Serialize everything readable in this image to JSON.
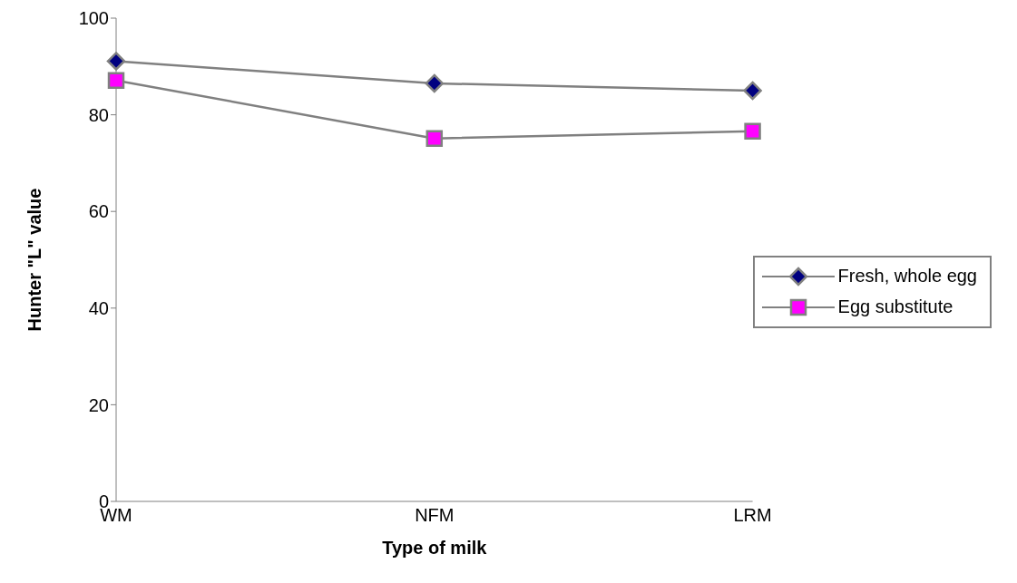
{
  "chart_data": {
    "type": "line",
    "xlabel": "Type of milk",
    "ylabel": "Hunter \"L\" value",
    "categories": [
      "WM",
      "NFM",
      "LRM"
    ],
    "series": [
      {
        "name": "Fresh, whole egg",
        "color": "#000080",
        "marker": "diamond",
        "values": [
          91.1,
          86.5,
          85.0
        ]
      },
      {
        "name": "Egg substitute",
        "color": "#ff00ff",
        "marker": "square",
        "values": [
          87.1,
          75.1,
          76.6
        ]
      }
    ],
    "ylim": [
      0,
      100
    ],
    "yticks": [
      0,
      20,
      40,
      60,
      80,
      100
    ],
    "grid": false,
    "legend": "right"
  }
}
